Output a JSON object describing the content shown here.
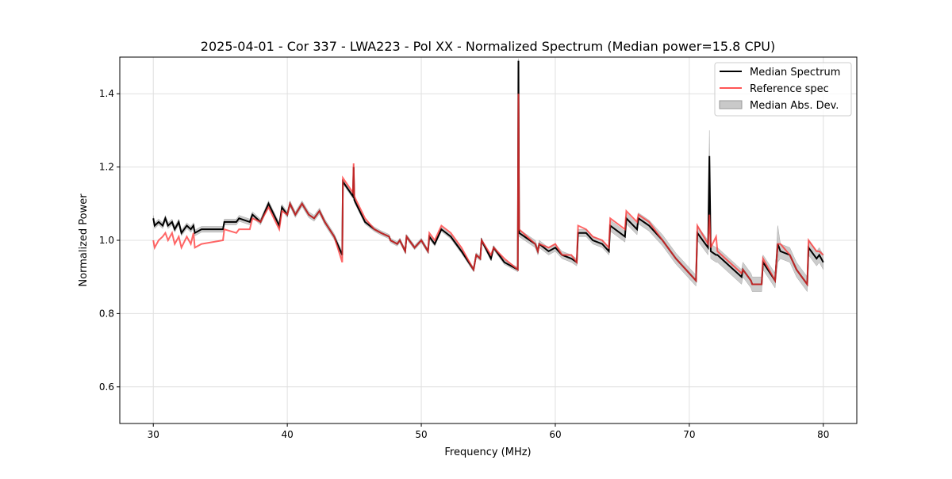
{
  "chart_data": {
    "type": "line",
    "title": "2025-04-01 - Cor 337 - LWA223 - Pol XX - Normalized Spectrum (Median power=15.8 CPU)",
    "xlabel": "Frequency (MHz)",
    "ylabel": "Normalized Power",
    "xlim": [
      27.5,
      82.5
    ],
    "ylim": [
      0.5,
      1.5
    ],
    "xticks": [
      30,
      40,
      50,
      60,
      70,
      80
    ],
    "yticks": [
      0.6,
      0.8,
      1.0,
      1.2,
      1.4
    ],
    "ytick_labels": [
      "0.6",
      "0.8",
      "1.0",
      "1.2",
      "1.4"
    ],
    "grid": true,
    "legend_position": "top-right",
    "legend": [
      "Median Spectrum",
      "Reference spec",
      "Median Abs. Dev."
    ],
    "colors": {
      "median": "#000000",
      "reference": "#ff5555",
      "mad": "#bbbbbb"
    },
    "x": [
      30.0,
      30.1,
      30.4,
      30.7,
      30.9,
      31.1,
      31.4,
      31.6,
      31.9,
      32.1,
      32.5,
      32.8,
      33.0,
      33.1,
      33.6,
      35.2,
      35.3,
      36.2,
      36.4,
      37.2,
      37.4,
      38.0,
      38.6,
      39.4,
      39.6,
      40.0,
      40.2,
      40.6,
      41.1,
      41.6,
      42.0,
      42.4,
      42.8,
      43.5,
      44.1,
      44.15,
      44.9,
      44.95,
      45.0,
      45.8,
      46.5,
      47.0,
      47.6,
      47.7,
      48.2,
      48.4,
      48.8,
      48.9,
      49.5,
      50.0,
      50.5,
      50.6,
      51.0,
      51.5,
      52.2,
      53.0,
      53.9,
      54.1,
      54.4,
      54.5,
      55.2,
      55.4,
      56.2,
      57.2,
      57.25,
      57.3,
      58.5,
      58.7,
      58.8,
      59.5,
      60.0,
      60.5,
      61.2,
      61.6,
      61.7,
      62.3,
      62.8,
      63.5,
      64.0,
      64.1,
      65.2,
      65.3,
      66.1,
      66.2,
      67.0,
      68.0,
      69.0,
      70.5,
      70.6,
      71.4,
      71.5,
      71.6,
      72.0,
      72.1,
      73.0,
      73.9,
      74.0,
      74.6,
      74.7,
      75.4,
      75.5,
      76.4,
      76.6,
      76.8,
      77.5,
      78.0,
      78.8,
      78.9,
      79.5,
      79.7,
      80.0
    ],
    "series": [
      {
        "name": "Median Spectrum",
        "values": [
          1.06,
          1.04,
          1.05,
          1.04,
          1.06,
          1.04,
          1.05,
          1.03,
          1.05,
          1.02,
          1.04,
          1.03,
          1.04,
          1.02,
          1.03,
          1.03,
          1.05,
          1.05,
          1.06,
          1.05,
          1.07,
          1.05,
          1.1,
          1.04,
          1.09,
          1.07,
          1.1,
          1.07,
          1.1,
          1.07,
          1.06,
          1.08,
          1.05,
          1.01,
          0.96,
          1.16,
          1.12,
          1.2,
          1.11,
          1.05,
          1.03,
          1.02,
          1.01,
          1.0,
          0.99,
          1.0,
          0.97,
          1.01,
          0.98,
          1.0,
          0.97,
          1.01,
          0.99,
          1.03,
          1.01,
          0.97,
          0.92,
          0.96,
          0.95,
          1.0,
          0.95,
          0.98,
          0.94,
          0.92,
          1.49,
          1.02,
          0.99,
          0.97,
          0.99,
          0.97,
          0.98,
          0.96,
          0.95,
          0.94,
          1.02,
          1.02,
          1.0,
          0.99,
          0.97,
          1.04,
          1.01,
          1.06,
          1.03,
          1.06,
          1.04,
          1.0,
          0.95,
          0.89,
          1.02,
          0.98,
          1.23,
          0.97,
          0.96,
          0.96,
          0.93,
          0.9,
          0.92,
          0.89,
          0.88,
          0.88,
          0.94,
          0.89,
          0.99,
          0.97,
          0.96,
          0.92,
          0.88,
          0.98,
          0.95,
          0.96,
          0.94
        ]
      },
      {
        "name": "Reference spec",
        "values": [
          1.0,
          0.98,
          1.0,
          1.01,
          1.02,
          1.0,
          1.02,
          0.99,
          1.01,
          0.98,
          1.01,
          0.99,
          1.02,
          0.98,
          0.99,
          1.0,
          1.03,
          1.02,
          1.03,
          1.03,
          1.06,
          1.05,
          1.09,
          1.03,
          1.08,
          1.07,
          1.1,
          1.07,
          1.1,
          1.07,
          1.06,
          1.08,
          1.05,
          1.01,
          0.94,
          1.17,
          1.13,
          1.21,
          1.12,
          1.06,
          1.03,
          1.02,
          1.01,
          1.0,
          0.99,
          1.0,
          0.97,
          1.01,
          0.98,
          1.0,
          0.97,
          1.02,
          1.0,
          1.04,
          1.02,
          0.98,
          0.92,
          0.96,
          0.95,
          1.0,
          0.96,
          0.98,
          0.95,
          0.92,
          1.4,
          1.03,
          0.99,
          0.97,
          0.99,
          0.98,
          0.99,
          0.96,
          0.96,
          0.94,
          1.04,
          1.03,
          1.01,
          1.0,
          0.98,
          1.06,
          1.03,
          1.08,
          1.05,
          1.07,
          1.05,
          1.0,
          0.95,
          0.89,
          1.04,
          0.99,
          1.07,
          0.98,
          1.01,
          0.97,
          0.94,
          0.91,
          0.92,
          0.89,
          0.88,
          0.88,
          0.95,
          0.89,
          0.99,
          0.99,
          0.96,
          0.92,
          0.88,
          1.0,
          0.97,
          0.97,
          0.96
        ]
      },
      {
        "name": "Median Abs. Dev.",
        "values": [
          0.008,
          0.008,
          0.008,
          0.008,
          0.008,
          0.008,
          0.008,
          0.008,
          0.008,
          0.008,
          0.008,
          0.008,
          0.008,
          0.008,
          0.008,
          0.008,
          0.008,
          0.008,
          0.008,
          0.008,
          0.008,
          0.008,
          0.008,
          0.008,
          0.008,
          0.008,
          0.008,
          0.008,
          0.008,
          0.008,
          0.008,
          0.008,
          0.008,
          0.008,
          0.008,
          0.006,
          0.006,
          0.006,
          0.006,
          0.006,
          0.006,
          0.006,
          0.006,
          0.006,
          0.006,
          0.006,
          0.006,
          0.006,
          0.006,
          0.006,
          0.006,
          0.006,
          0.006,
          0.006,
          0.006,
          0.006,
          0.006,
          0.006,
          0.006,
          0.006,
          0.006,
          0.006,
          0.006,
          0.006,
          0.006,
          0.01,
          0.01,
          0.01,
          0.01,
          0.01,
          0.01,
          0.01,
          0.01,
          0.01,
          0.01,
          0.01,
          0.01,
          0.01,
          0.01,
          0.015,
          0.015,
          0.015,
          0.015,
          0.015,
          0.015,
          0.015,
          0.015,
          0.015,
          0.02,
          0.02,
          0.07,
          0.02,
          0.02,
          0.02,
          0.02,
          0.02,
          0.02,
          0.02,
          0.02,
          0.02,
          0.02,
          0.02,
          0.05,
          0.02,
          0.02,
          0.02,
          0.02,
          0.02,
          0.02,
          0.02,
          0.02
        ]
      }
    ]
  }
}
